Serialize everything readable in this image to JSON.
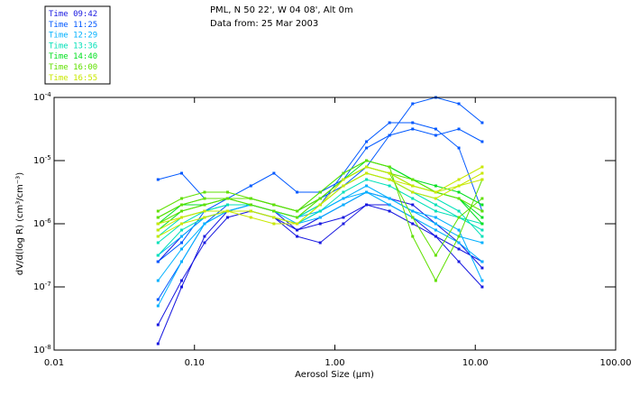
{
  "header": {
    "line1": "PML, N 50 22', W 04 08', Alt 0m",
    "line2": "Data from: 25 Mar 2003"
  },
  "chart_data": {
    "type": "line",
    "title": "PML, N 50 22', W 04 08', Alt 0m",
    "subtitle": "Data from: 25 Mar 2003",
    "xlabel": "Aerosol Size (µm)",
    "ylabel": "dV/d(log R) (cm³/cm⁻³)",
    "x_scale": "log",
    "y_scale": "log",
    "xlim": [
      0.01,
      100
    ],
    "ylim": [
      1e-08,
      0.0001
    ],
    "x_ticks": [
      "0.01",
      "0.10",
      "1.00",
      "10.00",
      "100.00"
    ],
    "y_ticks": [
      {
        "base": "10",
        "exp": "-4"
      },
      {
        "base": "10",
        "exp": "-5"
      },
      {
        "base": "10",
        "exp": "-6"
      },
      {
        "base": "10",
        "exp": "-7"
      },
      {
        "base": "10",
        "exp": "-8"
      }
    ],
    "legend_placement": "top-left outside",
    "x": [
      0.055,
      0.081,
      0.118,
      0.172,
      0.252,
      0.368,
      0.538,
      0.786,
      1.15,
      1.68,
      2.45,
      3.58,
      5.23,
      7.64,
      11.2
    ],
    "groups": [
      {
        "name": "Time 09:42",
        "color": "#1818e0",
        "series_log10_values": [
          [
            -7.9,
            -7.0,
            -6.2,
            -5.8,
            -5.7,
            -5.8,
            -6.1,
            -5.9,
            -5.7,
            -5.5,
            -5.6,
            -5.7,
            -6.0,
            -6.3,
            -6.7
          ],
          [
            -7.6,
            -6.9,
            -6.3,
            -5.9,
            -5.8,
            -5.9,
            -6.2,
            -6.3,
            -6.0,
            -5.7,
            -5.7,
            -5.9,
            -6.2,
            -6.6,
            -7.0
          ],
          [
            -6.6,
            -6.2,
            -5.9,
            -5.8,
            -5.8,
            -5.9,
            -6.1,
            -6.0,
            -5.9,
            -5.7,
            -5.8,
            -6.0,
            -6.2,
            -6.4,
            -6.6
          ]
        ]
      },
      {
        "name": "Time 11:25",
        "color": "#0058ff",
        "series_log10_values": [
          [
            -5.3,
            -5.2,
            -5.6,
            -5.6,
            -5.4,
            -5.2,
            -5.5,
            -5.5,
            -5.3,
            -4.8,
            -4.6,
            -4.5,
            -4.6,
            -4.5,
            -4.7
          ],
          [
            -7.2,
            -6.6,
            -6.0,
            -5.7,
            -5.7,
            -5.8,
            -5.9,
            -5.7,
            -5.2,
            -4.7,
            -4.4,
            -4.4,
            -4.5,
            -4.8,
            -5.8
          ],
          [
            -6.6,
            -6.3,
            -5.8,
            -5.6,
            -5.6,
            -5.7,
            -5.8,
            -5.6,
            -5.4,
            -5.1,
            -4.6,
            -4.1,
            -4.0,
            -4.1,
            -4.4
          ]
        ]
      },
      {
        "name": "Time 12:29",
        "color": "#00b0ff",
        "series_log10_values": [
          [
            -7.3,
            -6.6,
            -6.0,
            -5.8,
            -5.7,
            -5.8,
            -6.0,
            -5.9,
            -5.7,
            -5.5,
            -5.7,
            -5.9,
            -6.1,
            -6.3,
            -6.6
          ],
          [
            -6.9,
            -6.4,
            -6.0,
            -5.8,
            -5.8,
            -5.9,
            -6.0,
            -5.8,
            -5.6,
            -5.4,
            -5.6,
            -5.8,
            -6.0,
            -6.2,
            -6.3
          ],
          [
            -6.5,
            -6.2,
            -5.9,
            -5.8,
            -5.7,
            -5.8,
            -5.9,
            -5.8,
            -5.6,
            -5.5,
            -5.6,
            -5.8,
            -5.9,
            -6.1,
            -6.9
          ]
        ]
      },
      {
        "name": "Time 13:36",
        "color": "#00e0b8",
        "series_log10_values": [
          [
            -6.3,
            -6.0,
            -5.8,
            -5.7,
            -5.7,
            -5.8,
            -5.9,
            -5.7,
            -5.4,
            -5.2,
            -5.3,
            -5.5,
            -5.7,
            -5.9,
            -6.1
          ],
          [
            -6.5,
            -6.1,
            -5.9,
            -5.8,
            -5.8,
            -5.9,
            -6.0,
            -5.8,
            -5.5,
            -5.3,
            -5.4,
            -5.6,
            -5.8,
            -5.9,
            -6.0
          ],
          [
            -6.2,
            -5.9,
            -5.8,
            -5.7,
            -5.7,
            -5.8,
            -5.9,
            -5.7,
            -5.4,
            -5.2,
            -5.3,
            -5.5,
            -5.6,
            -5.8,
            -6.2
          ]
        ]
      },
      {
        "name": "Time 14:40",
        "color": "#00e020",
        "series_log10_values": [
          [
            -6.1,
            -5.8,
            -5.7,
            -5.6,
            -5.6,
            -5.7,
            -5.8,
            -5.6,
            -5.3,
            -5.0,
            -5.1,
            -5.3,
            -5.4,
            -5.5,
            -5.7
          ],
          [
            -6.0,
            -5.7,
            -5.7,
            -5.6,
            -5.6,
            -5.7,
            -5.8,
            -5.5,
            -5.2,
            -5.0,
            -5.1,
            -5.3,
            -5.5,
            -5.6,
            -5.9
          ],
          [
            -5.9,
            -5.7,
            -5.6,
            -5.6,
            -5.7,
            -5.8,
            -5.9,
            -5.6,
            -5.3,
            -5.1,
            -5.2,
            -5.4,
            -5.5,
            -5.6,
            -6.0
          ]
        ]
      },
      {
        "name": "Time 16:00",
        "color": "#60e000",
        "series_log10_values": [
          [
            -5.8,
            -5.6,
            -5.5,
            -5.5,
            -5.6,
            -5.7,
            -5.8,
            -5.5,
            -5.2,
            -5.0,
            -5.1,
            -6.2,
            -6.9,
            -6.2,
            -5.3
          ],
          [
            -5.9,
            -5.7,
            -5.6,
            -5.6,
            -5.6,
            -5.7,
            -5.8,
            -5.6,
            -5.3,
            -5.1,
            -5.2,
            -5.9,
            -6.5,
            -5.9,
            -5.6
          ],
          [
            -6.0,
            -5.8,
            -5.7,
            -5.6,
            -5.7,
            -5.8,
            -5.9,
            -5.6,
            -5.3,
            -5.1,
            -5.2,
            -5.3,
            -5.5,
            -5.6,
            -5.8
          ]
        ]
      },
      {
        "name": "Time 16:55",
        "color": "#c8e800",
        "series_log10_values": [
          [
            -6.0,
            -5.9,
            -5.8,
            -5.8,
            -5.8,
            -5.9,
            -6.0,
            -5.7,
            -5.4,
            -5.2,
            -5.3,
            -5.4,
            -5.5,
            -5.4,
            -5.2
          ],
          [
            -6.1,
            -5.9,
            -5.8,
            -5.8,
            -5.9,
            -6.0,
            -6.0,
            -5.7,
            -5.4,
            -5.2,
            -5.3,
            -5.5,
            -5.6,
            -5.4,
            -5.3
          ],
          [
            -6.2,
            -6.0,
            -5.9,
            -5.8,
            -5.8,
            -5.9,
            -6.0,
            -5.7,
            -5.3,
            -5.1,
            -5.2,
            -5.4,
            -5.5,
            -5.3,
            -5.1
          ]
        ]
      }
    ]
  }
}
